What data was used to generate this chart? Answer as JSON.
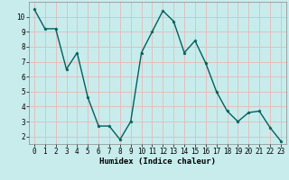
{
  "x": [
    0,
    1,
    2,
    3,
    4,
    5,
    6,
    7,
    8,
    9,
    10,
    11,
    12,
    13,
    14,
    15,
    16,
    17,
    18,
    19,
    20,
    21,
    22,
    23
  ],
  "y": [
    10.5,
    9.2,
    9.2,
    6.5,
    7.6,
    4.6,
    2.7,
    2.7,
    1.8,
    3.0,
    7.6,
    9.0,
    10.4,
    9.7,
    7.6,
    8.4,
    6.9,
    5.0,
    3.7,
    3.0,
    3.6,
    3.7,
    2.6,
    1.7
  ],
  "line_color": "#006060",
  "marker": "*",
  "marker_size": 2.5,
  "bg_color": "#c8ecec",
  "grid_color": "#e8b8b8",
  "xlabel": "Humidex (Indice chaleur)",
  "xlim": [
    -0.5,
    23.5
  ],
  "ylim": [
    1.5,
    11.0
  ],
  "yticks": [
    2,
    3,
    4,
    5,
    6,
    7,
    8,
    9,
    10
  ],
  "xticks": [
    0,
    1,
    2,
    3,
    4,
    5,
    6,
    7,
    8,
    9,
    10,
    11,
    12,
    13,
    14,
    15,
    16,
    17,
    18,
    19,
    20,
    21,
    22,
    23
  ],
  "xlabel_fontsize": 6.5,
  "tick_fontsize": 5.5,
  "line_width": 1.0
}
